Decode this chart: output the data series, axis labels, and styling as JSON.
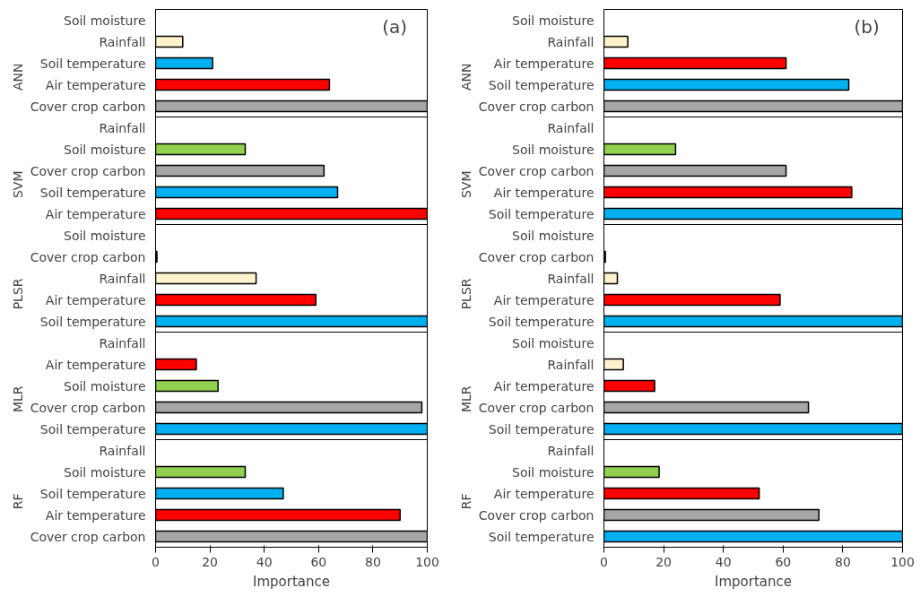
{
  "chart_data": [
    {
      "type": "bar",
      "orientation": "horizontal",
      "xlabel": "Importance",
      "xlim": [
        0,
        100
      ],
      "xticks": [
        0,
        20,
        40,
        60,
        80,
        100
      ],
      "annotations": [
        "(a)",
        "ANN",
        "SVM",
        "PLSR",
        "MLR",
        "RF"
      ],
      "categories": [
        "Soil moisture",
        "Rainfall",
        "Soil temperature",
        "Air temperature",
        "Cover crop carbon",
        "Rainfall",
        "Soil moisture",
        "Cover crop carbon",
        "Soil temperature",
        "Air temperature",
        "Soil moisture",
        "Cover crop carbon",
        "Rainfall",
        "Air temperature",
        "Soil temperature",
        "Rainfall",
        "Air temperature",
        "Soil moisture",
        "Cover crop carbon",
        "Soil temperature",
        "Rainfall",
        "Soil moisture",
        "Soil temperature",
        "Air temperature",
        "Cover crop carbon"
      ],
      "values": [
        null,
        10,
        21,
        64,
        100,
        null,
        33,
        62,
        67,
        100,
        null,
        0.5,
        37,
        59,
        100,
        null,
        15,
        23,
        98,
        100,
        null,
        33,
        47,
        90,
        100
      ],
      "colors": [
        null,
        "#fff2cc",
        "#00b0f0",
        "#ff0000",
        "#a6a6a6",
        null,
        "#92d050",
        "#a6a6a6",
        "#00b0f0",
        "#ff0000",
        null,
        "#a6a6a6",
        "#fff2cc",
        "#ff0000",
        "#00b0f0",
        null,
        "#ff0000",
        "#92d050",
        "#a6a6a6",
        "#00b0f0",
        null,
        "#92d050",
        "#00b0f0",
        "#ff0000",
        "#a6a6a6"
      ]
    },
    {
      "type": "bar",
      "orientation": "horizontal",
      "xlabel": "Importance",
      "xlim": [
        0,
        100
      ],
      "xticks": [
        0,
        20,
        40,
        60,
        80,
        100
      ],
      "annotations": [
        "(b)",
        "ANN",
        "SVM",
        "PLSR",
        "MLR",
        "RF"
      ],
      "categories": [
        "Soil moisture",
        "Rainfall",
        "Air temperature",
        "Soil temperature",
        "Cover crop carbon",
        "Rainfall",
        "Soil moisture",
        "Cover crop carbon",
        "Air temperature",
        "Soil temperature",
        "Soil moisture",
        "Cover crop carbon",
        "Rainfall",
        "Air temperature",
        "Soil temperature",
        "Soil moisture",
        "Rainfall",
        "Air temperature",
        "Cover crop carbon",
        "Soil temperature",
        "Rainfall",
        "Soil moisture",
        "Air temperature",
        "Cover crop carbon",
        "Soil temperature"
      ],
      "values": [
        null,
        8,
        61,
        82,
        100,
        null,
        24,
        61,
        83,
        100,
        null,
        0.5,
        4.5,
        59,
        100,
        null,
        6.5,
        17,
        68.5,
        100,
        null,
        18.5,
        52,
        72,
        100
      ],
      "colors": [
        null,
        "#fff2cc",
        "#ff0000",
        "#00b0f0",
        "#a6a6a6",
        null,
        "#92d050",
        "#a6a6a6",
        "#ff0000",
        "#00b0f0",
        null,
        "#a6a6a6",
        "#fff2cc",
        "#ff0000",
        "#00b0f0",
        null,
        "#fff2cc",
        "#ff0000",
        "#a6a6a6",
        "#00b0f0",
        null,
        "#92d050",
        "#ff0000",
        "#a6a6a6",
        "#00b0f0"
      ]
    }
  ]
}
